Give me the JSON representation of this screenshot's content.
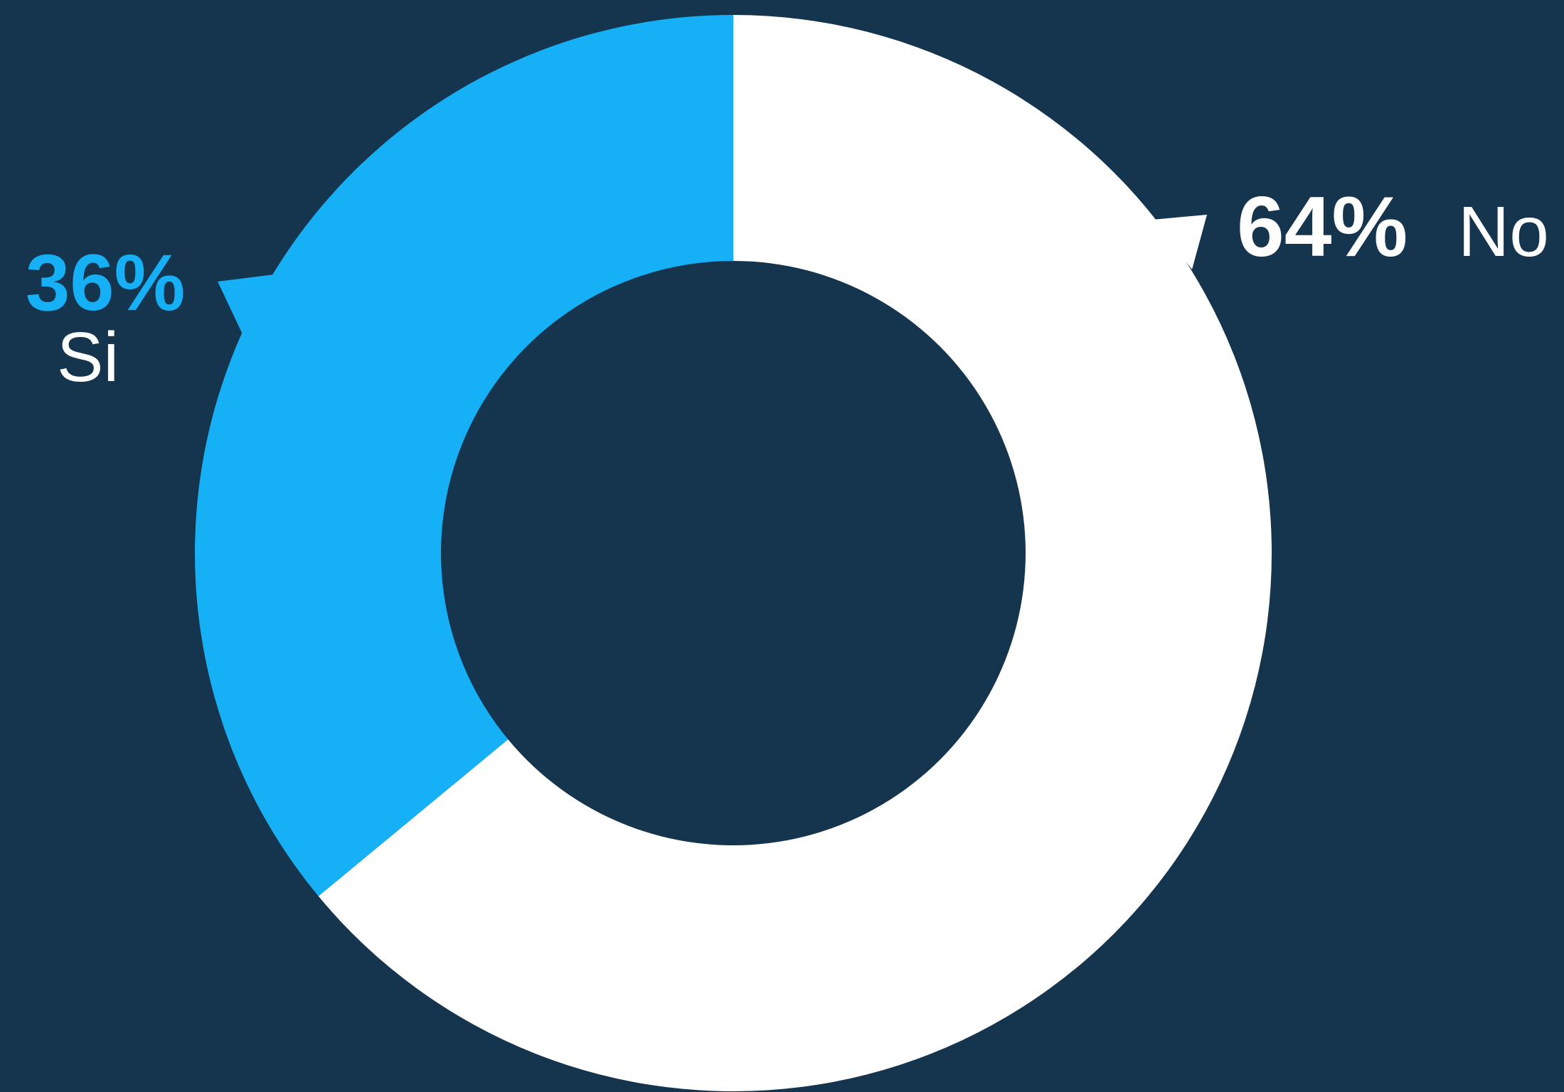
{
  "chart_data": {
    "type": "donut",
    "categories": [
      "No",
      "Si"
    ],
    "values": [
      64,
      36
    ],
    "value_labels": [
      "64%",
      "36%"
    ],
    "colors": [
      "#ffffff",
      "#15b0f5"
    ]
  }
}
